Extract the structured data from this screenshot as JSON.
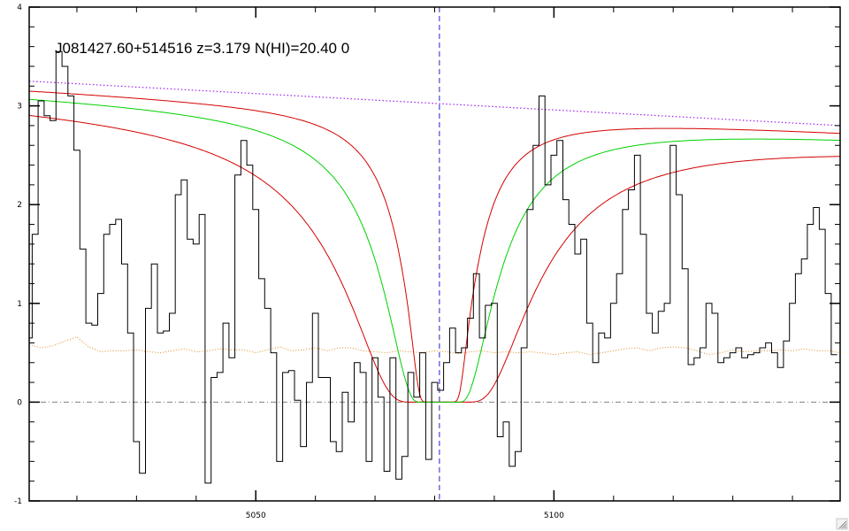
{
  "chart_data": {
    "type": "line",
    "title": "J081427.60+514516 z=3.179 N(HI)=20.40 0",
    "xlabel": "",
    "ylabel": "",
    "xlim": [
      5012,
      5148
    ],
    "ylim": [
      -1,
      4
    ],
    "x_ticks": [
      5050,
      5100
    ],
    "x_tick_labels": [
      "5050",
      "5100"
    ],
    "y_ticks": [
      -1,
      0,
      1,
      2,
      3,
      4
    ],
    "y_tick_labels": [
      "-1",
      "0",
      "1",
      "2",
      "3",
      "4"
    ],
    "line_center": 5080.8,
    "flux": {
      "name": "",
      "color": "#000000",
      "x": [
        5012.0,
        5013.0,
        5014.0,
        5015.0,
        5016.0,
        5017.0,
        5018.0,
        5019.0,
        5020.0,
        5021.0,
        5022.0,
        5023.0,
        5024.0,
        5025.0,
        5026.0,
        5027.0,
        5028.0,
        5029.0,
        5030.0,
        5031.0,
        5032.0,
        5033.0,
        5034.0,
        5035.0,
        5036.0,
        5037.0,
        5038.0,
        5039.0,
        5040.0,
        5041.0,
        5042.0,
        5043.0,
        5044.0,
        5045.0,
        5046.0,
        5047.0,
        5048.0,
        5049.0,
        5050.0,
        5051.0,
        5052.0,
        5053.0,
        5054.0,
        5055.0,
        5056.0,
        5057.0,
        5058.0,
        5059.0,
        5060.0,
        5061.0,
        5062.0,
        5063.0,
        5064.0,
        5065.0,
        5066.0,
        5067.0,
        5068.0,
        5069.0,
        5070.0,
        5071.0,
        5072.0,
        5073.0,
        5074.0,
        5075.0,
        5076.0,
        5077.0,
        5078.0,
        5079.0,
        5080.0,
        5081.0,
        5082.0,
        5083.0,
        5084.0,
        5085.0,
        5086.0,
        5087.0,
        5088.0,
        5089.0,
        5090.0,
        5091.0,
        5092.0,
        5093.0,
        5094.0,
        5095.0,
        5096.0,
        5097.0,
        5098.0,
        5099.0,
        5100.0,
        5101.0,
        5102.0,
        5103.0,
        5104.0,
        5105.0,
        5106.0,
        5107.0,
        5108.0,
        5109.0,
        5110.0,
        5111.0,
        5112.0,
        5113.0,
        5114.0,
        5115.0,
        5116.0,
        5117.0,
        5118.0,
        5119.0,
        5120.0,
        5121.0,
        5122.0,
        5123.0,
        5124.0,
        5125.0,
        5126.0,
        5127.0,
        5128.0,
        5129.0,
        5130.0,
        5131.0,
        5132.0,
        5133.0,
        5134.0,
        5135.0,
        5136.0,
        5137.0,
        5138.0,
        5139.0,
        5140.0,
        5141.0,
        5142.0,
        5143.0,
        5144.0,
        5145.0,
        5146.0,
        5147.0
      ],
      "y": [
        0.65,
        1.7,
        3.05,
        2.9,
        2.85,
        3.55,
        3.4,
        3.1,
        2.55,
        1.55,
        0.8,
        0.78,
        1.1,
        1.7,
        1.8,
        1.85,
        1.4,
        0.7,
        -0.4,
        -0.72,
        0.95,
        1.4,
        0.7,
        0.72,
        0.9,
        2.1,
        2.25,
        1.65,
        1.6,
        1.9,
        -0.82,
        0.25,
        0.3,
        0.8,
        0.45,
        2.3,
        2.65,
        2.4,
        1.95,
        1.25,
        0.95,
        0.5,
        -0.6,
        0.3,
        0.32,
        0.02,
        -0.45,
        0.2,
        0.9,
        0.25,
        0.25,
        -0.4,
        -0.5,
        0.1,
        -0.2,
        0.4,
        0.3,
        -0.6,
        0.45,
        0.05,
        -0.7,
        0.45,
        -0.78,
        -0.55,
        0.3,
        0.05,
        0.5,
        -0.58,
        0.2,
        0.12,
        0.4,
        0.75,
        0.5,
        0.55,
        0.85,
        1.3,
        0.65,
        0.98,
        1.0,
        -0.35,
        -0.2,
        -0.65,
        -0.5,
        0.55,
        1.95,
        2.6,
        3.1,
        2.2,
        2.5,
        2.65,
        2.05,
        1.8,
        1.5,
        1.65,
        0.8,
        0.4,
        0.7,
        0.65,
        1.0,
        1.3,
        1.95,
        2.15,
        2.5,
        1.7,
        0.9,
        0.7,
        0.92,
        1.0,
        2.6,
        2.1,
        1.35,
        0.38,
        0.45,
        0.55,
        1.0,
        0.9,
        0.4,
        0.45,
        0.5,
        0.55,
        0.45,
        0.48,
        0.5,
        0.55,
        0.6,
        0.5,
        0.35,
        0.62,
        1.0,
        1.3,
        1.45,
        1.8,
        1.97,
        1.75,
        1.1,
        0.48
      ]
    },
    "error": {
      "name": "",
      "color": "#e08a20",
      "x": [
        5012,
        5014,
        5016,
        5018,
        5020,
        5022,
        5024,
        5026,
        5028,
        5030,
        5032,
        5034,
        5036,
        5038,
        5040,
        5042,
        5044,
        5046,
        5048,
        5050,
        5052,
        5054,
        5056,
        5058,
        5060,
        5062,
        5064,
        5066,
        5068,
        5070,
        5072,
        5074,
        5076,
        5078,
        5080,
        5082,
        5084,
        5086,
        5088,
        5090,
        5092,
        5094,
        5096,
        5098,
        5100,
        5102,
        5104,
        5106,
        5108,
        5110,
        5112,
        5114,
        5116,
        5118,
        5120,
        5122,
        5124,
        5126,
        5128,
        5130,
        5132,
        5134,
        5136,
        5138,
        5140,
        5142,
        5144,
        5146,
        5148
      ],
      "y": [
        0.58,
        0.55,
        0.57,
        0.62,
        0.66,
        0.56,
        0.51,
        0.52,
        0.52,
        0.53,
        0.51,
        0.5,
        0.52,
        0.54,
        0.51,
        0.52,
        0.54,
        0.53,
        0.53,
        0.5,
        0.53,
        0.56,
        0.52,
        0.53,
        0.55,
        0.52,
        0.55,
        0.55,
        0.52,
        0.51,
        0.5,
        0.52,
        0.51,
        0.5,
        0.52,
        0.51,
        0.49,
        0.51,
        0.52,
        0.5,
        0.51,
        0.5,
        0.51,
        0.5,
        0.48,
        0.5,
        0.51,
        0.48,
        0.5,
        0.52,
        0.54,
        0.55,
        0.52,
        0.55,
        0.56,
        0.55,
        0.52,
        0.48,
        0.5,
        0.53,
        0.51,
        0.52,
        0.52,
        0.53,
        0.52,
        0.54,
        0.52,
        0.52,
        0.5
      ]
    },
    "continuum": {
      "name": "",
      "color": "#a020f0",
      "x": [
        5012,
        5148
      ],
      "y": [
        3.25,
        2.8
      ]
    },
    "fit": {
      "name": "",
      "color": "#00d000",
      "continuum_start": 3.12,
      "continuum_end": 2.7,
      "line_x": 5080.8,
      "curve_span": [
        5012,
        5148
      ]
    },
    "fit_bounds": {
      "name": "",
      "color": "#d40000",
      "upper": {
        "continuum_start": 3.17,
        "continuum_end": 2.74
      },
      "lower": {
        "continuum_start": 3.05,
        "continuum_end": 2.62
      }
    },
    "zero_line": {
      "color": "#808080",
      "y": 0
    },
    "grid": false,
    "legend": "none"
  }
}
